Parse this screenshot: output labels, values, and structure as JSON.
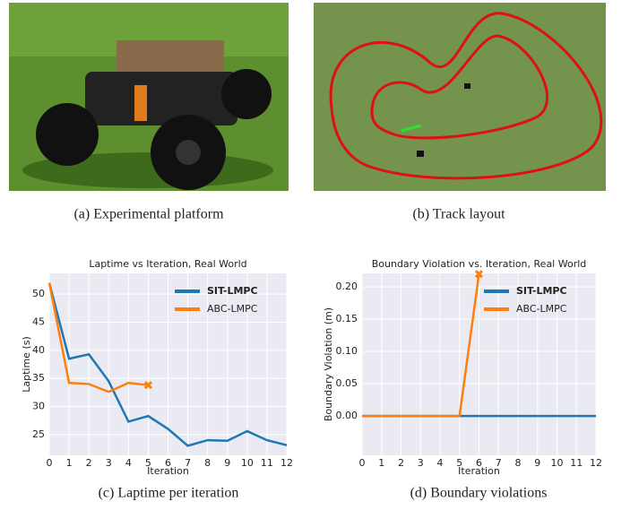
{
  "captions": [
    "(a) Experimental platform",
    "(b) Track layout",
    "(c) Laptime per iteration",
    "(d) Boundary violations"
  ],
  "chart_data": [
    {
      "type": "line",
      "title": "Laptime vs Iteration, Real World",
      "x_label": "Iteration",
      "y_label": "Laptime (s)",
      "x": [
        0,
        1,
        2,
        3,
        4,
        5,
        6,
        7,
        8,
        9,
        10,
        11,
        12
      ],
      "series": [
        {
          "name": "SIT-LMPC",
          "color": "#1f77b4",
          "values": [
            52,
            38.5,
            39.3,
            34.5,
            27.3,
            28.3,
            26,
            23,
            24,
            23.9,
            25.6,
            24,
            23.1
          ]
        },
        {
          "name": "ABC-LMPC",
          "color": "#ff7f0e",
          "values": [
            52,
            34.2,
            34,
            32.6,
            34.2,
            33.8,
            null,
            null,
            null,
            null,
            null,
            null,
            null
          ]
        }
      ],
      "xlim": [
        0,
        12
      ],
      "ylim": [
        21.3,
        53.7
      ],
      "xticks": [
        0,
        1,
        2,
        3,
        4,
        5,
        6,
        7,
        8,
        9,
        10,
        11,
        12
      ],
      "yticks": [
        25,
        30,
        35,
        40,
        45,
        50
      ],
      "grid": true,
      "legend": "upper right"
    },
    {
      "type": "line",
      "title": "Boundary Violation vs. Iteration, Real World",
      "x_label": "Iteration",
      "y_label": "Boundary Violation (m)",
      "x": [
        0,
        1,
        2,
        3,
        4,
        5,
        6,
        7,
        8,
        9,
        10,
        11,
        12
      ],
      "series": [
        {
          "name": "SIT-LMPC",
          "color": "#1f77b4",
          "values": [
            0,
            0,
            0,
            0,
            0,
            0,
            0,
            0,
            0,
            0,
            0,
            0,
            0
          ]
        },
        {
          "name": "ABC-LMPC",
          "color": "#ff7f0e",
          "values": [
            0,
            0,
            0,
            0,
            0,
            0,
            0.22,
            null,
            null,
            null,
            null,
            null,
            null
          ]
        }
      ],
      "xlim": [
        0,
        12
      ],
      "ylim": [
        -0.061,
        0.221
      ],
      "xticks": [
        0,
        1,
        2,
        3,
        4,
        5,
        6,
        7,
        8,
        9,
        10,
        11,
        12
      ],
      "yticks": [
        {
          "value": 0,
          "label": "0.00"
        },
        {
          "value": 0.05,
          "label": "0.05"
        },
        {
          "value": 0.1,
          "label": "0.10"
        },
        {
          "value": 0.15,
          "label": "0.15"
        },
        {
          "value": 0.2,
          "label": "0.20"
        }
      ],
      "grid": true,
      "legend": "upper right"
    }
  ]
}
